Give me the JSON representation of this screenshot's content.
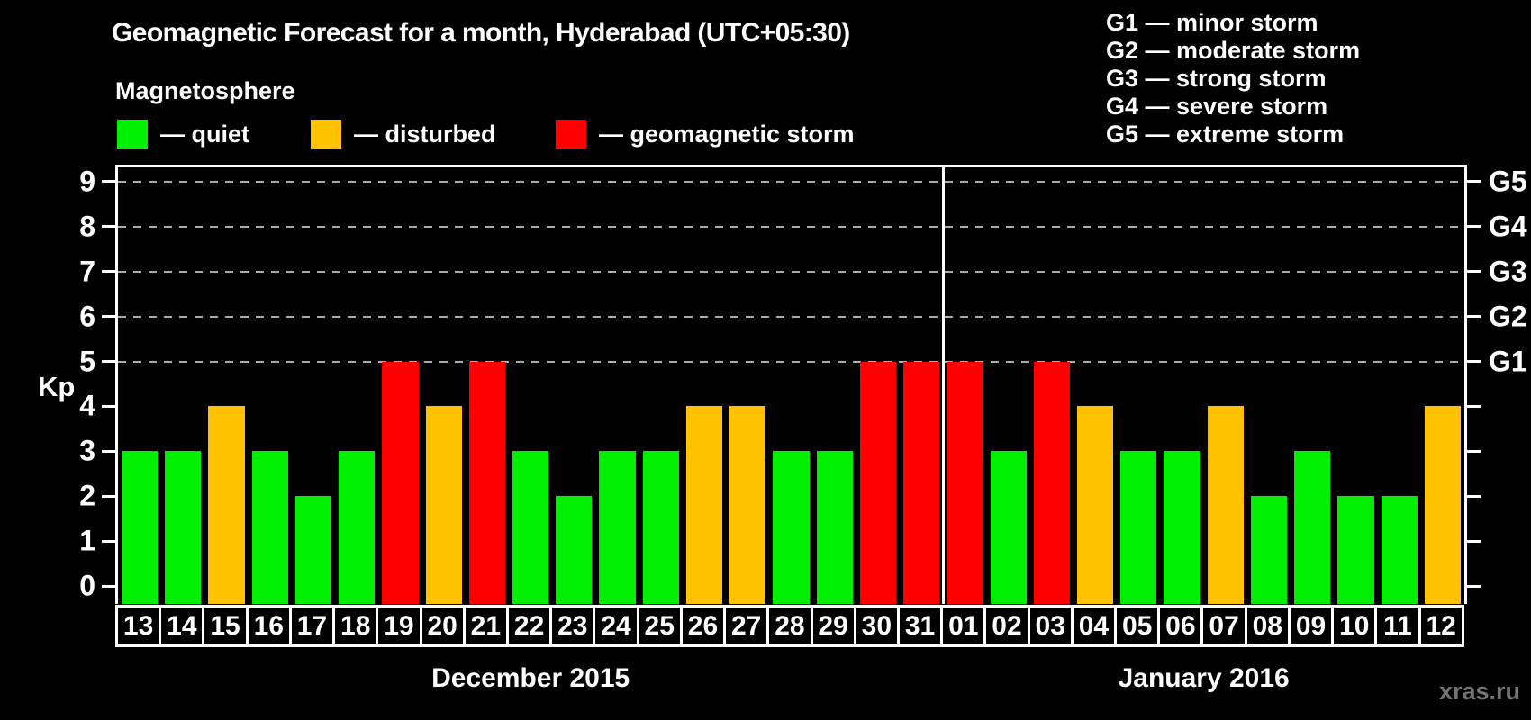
{
  "title": "Geomagnetic Forecast for a month, Hyderabad (UTC+05:30)",
  "subtitle": "Magnetosphere",
  "legend": {
    "items": [
      {
        "state": "quiet",
        "label": "— quiet",
        "color": "#00ee00"
      },
      {
        "state": "disturbed",
        "label": "— disturbed",
        "color": "#ffc100"
      },
      {
        "state": "storm",
        "label": "— geomagnetic storm",
        "color": "#ff0000"
      }
    ]
  },
  "g_legend": [
    "G1 — minor storm",
    "G2 — moderate storm",
    "G3 — strong storm",
    "G4 — severe storm",
    "G5 — extreme storm"
  ],
  "watermark": "xras.ru",
  "chart_data": {
    "type": "bar",
    "ylabel": "Kp",
    "ylim": [
      0,
      9
    ],
    "y_ticks": [
      0,
      1,
      2,
      3,
      4,
      5,
      6,
      7,
      8,
      9
    ],
    "gridlines_at": [
      5,
      6,
      7,
      8,
      9
    ],
    "grid": "dashed",
    "right_axis_labels": [
      {
        "kp": 5,
        "label": "G1"
      },
      {
        "kp": 6,
        "label": "G2"
      },
      {
        "kp": 7,
        "label": "G3"
      },
      {
        "kp": 8,
        "label": "G4"
      },
      {
        "kp": 9,
        "label": "G5"
      }
    ],
    "months": [
      {
        "label": "December 2015",
        "days_count": 19
      },
      {
        "label": "January 2016",
        "days_count": 12
      }
    ],
    "days": [
      {
        "day": "13",
        "kp": 3,
        "state": "quiet"
      },
      {
        "day": "14",
        "kp": 3,
        "state": "quiet"
      },
      {
        "day": "15",
        "kp": 4,
        "state": "disturbed"
      },
      {
        "day": "16",
        "kp": 3,
        "state": "quiet"
      },
      {
        "day": "17",
        "kp": 2,
        "state": "quiet"
      },
      {
        "day": "18",
        "kp": 3,
        "state": "quiet"
      },
      {
        "day": "19",
        "kp": 5,
        "state": "storm"
      },
      {
        "day": "20",
        "kp": 4,
        "state": "disturbed"
      },
      {
        "day": "21",
        "kp": 5,
        "state": "storm"
      },
      {
        "day": "22",
        "kp": 3,
        "state": "quiet"
      },
      {
        "day": "23",
        "kp": 2,
        "state": "quiet"
      },
      {
        "day": "24",
        "kp": 3,
        "state": "quiet"
      },
      {
        "day": "25",
        "kp": 3,
        "state": "quiet"
      },
      {
        "day": "26",
        "kp": 4,
        "state": "disturbed"
      },
      {
        "day": "27",
        "kp": 4,
        "state": "disturbed"
      },
      {
        "day": "28",
        "kp": 3,
        "state": "quiet"
      },
      {
        "day": "29",
        "kp": 3,
        "state": "quiet"
      },
      {
        "day": "30",
        "kp": 5,
        "state": "storm"
      },
      {
        "day": "31",
        "kp": 5,
        "state": "storm"
      },
      {
        "day": "01",
        "kp": 5,
        "state": "storm"
      },
      {
        "day": "02",
        "kp": 3,
        "state": "quiet"
      },
      {
        "day": "03",
        "kp": 5,
        "state": "storm"
      },
      {
        "day": "04",
        "kp": 4,
        "state": "disturbed"
      },
      {
        "day": "05",
        "kp": 3,
        "state": "quiet"
      },
      {
        "day": "06",
        "kp": 3,
        "state": "quiet"
      },
      {
        "day": "07",
        "kp": 4,
        "state": "disturbed"
      },
      {
        "day": "08",
        "kp": 2,
        "state": "quiet"
      },
      {
        "day": "09",
        "kp": 3,
        "state": "quiet"
      },
      {
        "day": "10",
        "kp": 2,
        "state": "quiet"
      },
      {
        "day": "11",
        "kp": 2,
        "state": "quiet"
      },
      {
        "day": "12",
        "kp": 4,
        "state": "disturbed"
      }
    ]
  }
}
